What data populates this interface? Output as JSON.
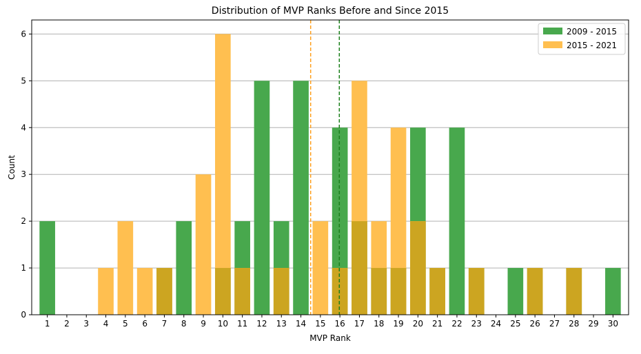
{
  "chart_data": {
    "type": "bar",
    "title": "Distribution of MVP Ranks Before and Since 2015",
    "xlabel": "MVP Rank",
    "ylabel": "Count",
    "categories": [
      1,
      2,
      3,
      4,
      5,
      6,
      7,
      8,
      9,
      10,
      11,
      12,
      13,
      14,
      15,
      16,
      17,
      18,
      19,
      20,
      21,
      22,
      23,
      24,
      25,
      26,
      27,
      28,
      29,
      30
    ],
    "ylim": [
      0,
      6.3
    ],
    "yticks": [
      0,
      1,
      2,
      3,
      4,
      5,
      6
    ],
    "grid": "horizontal",
    "legend_position": "top-right",
    "overlap_color": "#cca521",
    "series": [
      {
        "name": "2009 - 2015",
        "color": "#48a84d",
        "values": [
          2,
          0,
          0,
          0,
          0,
          0,
          1,
          2,
          0,
          1,
          2,
          5,
          2,
          5,
          0,
          4,
          2,
          1,
          1,
          4,
          1,
          4,
          1,
          0,
          1,
          1,
          0,
          1,
          0,
          1
        ]
      },
      {
        "name": "2015 - 2021",
        "color": "#ffbf50",
        "values": [
          0,
          0,
          0,
          1,
          2,
          1,
          1,
          0,
          3,
          6,
          1,
          0,
          1,
          0,
          2,
          1,
          5,
          2,
          4,
          2,
          1,
          0,
          1,
          0,
          0,
          1,
          0,
          1,
          0,
          0
        ]
      }
    ],
    "vlines": [
      {
        "x": 14.5,
        "color": "#ff9f1c",
        "style": "dashed"
      },
      {
        "x": 15.97,
        "color": "#1a7f1a",
        "style": "dashed"
      }
    ]
  }
}
